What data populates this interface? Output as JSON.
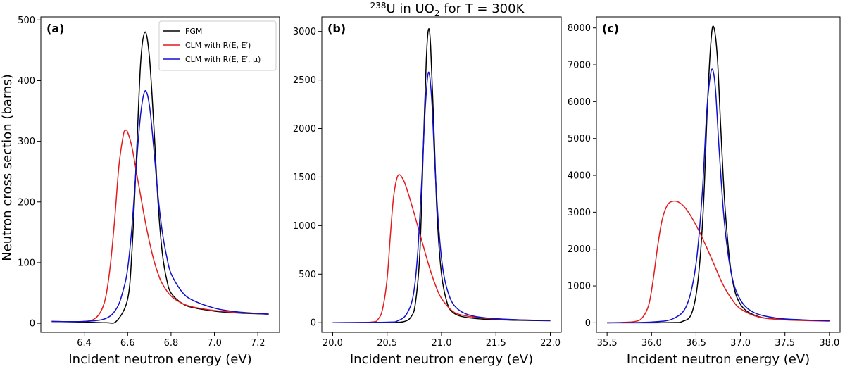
{
  "figure": {
    "title_prefix_sup": "238",
    "title_main": "U in UO",
    "title_sub": "2",
    "title_suffix": " for T = 300K",
    "ylabel": "Neutron cross section (barns)"
  },
  "legend": {
    "entries": [
      {
        "label": "FGM",
        "color": "#000000"
      },
      {
        "label": "CLM with R(E, E′)",
        "color": "#e41a1c"
      },
      {
        "label": "CLM with R(E, E′, μ)",
        "color": "#1010cc"
      }
    ]
  },
  "chart_data": [
    {
      "type": "line",
      "panel_label": "(a)",
      "xlabel": "Incident neutron energy (eV)",
      "ylabel": "Neutron cross section (barns)",
      "xlim": [
        6.2,
        7.3
      ],
      "ylim": [
        -15,
        505
      ],
      "xticks": [
        6.4,
        6.6,
        6.8,
        7.0,
        7.2
      ],
      "xtick_labels": [
        "6.4",
        "6.6",
        "6.8",
        "7.0",
        "7.2"
      ],
      "yticks": [
        0,
        100,
        200,
        300,
        400,
        500
      ],
      "ytick_labels": [
        "0",
        "100",
        "200",
        "300",
        "400",
        "500"
      ],
      "grid": false,
      "legend_position": "top-right",
      "series": [
        {
          "name": "FGM",
          "color": "#000000",
          "x": [
            6.25,
            6.4,
            6.5,
            6.55,
            6.6,
            6.62,
            6.64,
            6.66,
            6.68,
            6.7,
            6.72,
            6.74,
            6.76,
            6.78,
            6.8,
            6.85,
            6.9,
            7.0,
            7.1,
            7.25
          ],
          "y": [
            3,
            2,
            1,
            4,
            40,
            120,
            270,
            430,
            480,
            440,
            330,
            200,
            115,
            72,
            50,
            33,
            26,
            20,
            17,
            15
          ]
        },
        {
          "name": "CLM with R(E, E′)",
          "color": "#e41a1c",
          "x": [
            6.25,
            6.4,
            6.45,
            6.48,
            6.5,
            6.52,
            6.54,
            6.56,
            6.58,
            6.59,
            6.6,
            6.62,
            6.64,
            6.66,
            6.68,
            6.7,
            6.72,
            6.74,
            6.76,
            6.8,
            6.85,
            6.9,
            7.0,
            7.1,
            7.25
          ],
          "y": [
            3,
            3,
            8,
            22,
            45,
            95,
            170,
            260,
            310,
            318,
            315,
            290,
            250,
            210,
            170,
            135,
            105,
            82,
            65,
            45,
            33,
            27,
            21,
            18,
            15
          ]
        },
        {
          "name": "CLM with R(E, E′, μ)",
          "color": "#1010cc",
          "x": [
            6.25,
            6.4,
            6.5,
            6.55,
            6.58,
            6.6,
            6.62,
            6.64,
            6.66,
            6.68,
            6.7,
            6.72,
            6.74,
            6.76,
            6.78,
            6.8,
            6.85,
            6.9,
            7.0,
            7.1,
            7.25
          ],
          "y": [
            3,
            3,
            8,
            25,
            55,
            90,
            160,
            260,
            345,
            383,
            360,
            290,
            210,
            150,
            110,
            82,
            52,
            38,
            25,
            19,
            15
          ]
        }
      ]
    },
    {
      "type": "line",
      "panel_label": "(b)",
      "xlabel": "Incident neutron energy (eV)",
      "xlim": [
        19.9,
        22.1
      ],
      "ylim": [
        -100,
        3150
      ],
      "xticks": [
        20.0,
        20.5,
        21.0,
        21.5,
        22.0
      ],
      "xtick_labels": [
        "20.0",
        "20.5",
        "21.0",
        "21.5",
        "22.0"
      ],
      "yticks": [
        0,
        500,
        1000,
        1500,
        2000,
        2500,
        3000
      ],
      "ytick_labels": [
        "0",
        "500",
        "1000",
        "1500",
        "2000",
        "2500",
        "3000"
      ],
      "grid": false,
      "series": [
        {
          "name": "FGM",
          "color": "#000000",
          "x": [
            20.0,
            20.5,
            20.65,
            20.72,
            20.76,
            20.8,
            20.83,
            20.86,
            20.88,
            20.9,
            20.93,
            20.96,
            21.0,
            21.05,
            21.1,
            21.2,
            21.4,
            21.7,
            22.0
          ],
          "y": [
            0,
            2,
            10,
            60,
            200,
            700,
            1700,
            2700,
            3020,
            2850,
            2000,
            1100,
            500,
            210,
            110,
            60,
            35,
            25,
            20
          ]
        },
        {
          "name": "CLM with R(E, E′)",
          "color": "#e41a1c",
          "x": [
            20.0,
            20.35,
            20.42,
            20.46,
            20.5,
            20.53,
            20.56,
            20.6,
            20.65,
            20.7,
            20.75,
            20.8,
            20.85,
            20.9,
            20.95,
            21.0,
            21.1,
            21.2,
            21.4,
            21.7,
            22.0
          ],
          "y": [
            0,
            5,
            40,
            150,
            450,
            900,
            1300,
            1515,
            1470,
            1310,
            1120,
            920,
            720,
            530,
            370,
            250,
            120,
            75,
            45,
            30,
            22
          ]
        },
        {
          "name": "CLM with R(E, E′, μ)",
          "color": "#1010cc",
          "x": [
            20.0,
            20.5,
            20.6,
            20.68,
            20.74,
            20.78,
            20.82,
            20.85,
            20.88,
            20.91,
            20.94,
            20.98,
            21.02,
            21.08,
            21.15,
            21.25,
            21.4,
            21.7,
            22.0
          ],
          "y": [
            0,
            5,
            20,
            90,
            280,
            700,
            1500,
            2200,
            2580,
            2300,
            1600,
            900,
            500,
            250,
            140,
            80,
            50,
            30,
            22
          ]
        }
      ]
    },
    {
      "type": "line",
      "panel_label": "(c)",
      "xlabel": "Incident neutron energy (eV)",
      "xlim": [
        35.38,
        38.12
      ],
      "ylim": [
        -260,
        8300
      ],
      "xticks": [
        35.5,
        36.0,
        36.5,
        37.0,
        37.5,
        38.0
      ],
      "xtick_labels": [
        "35.5",
        "36.0",
        "36.5",
        "37.0",
        "37.5",
        "38.0"
      ],
      "yticks": [
        0,
        1000,
        2000,
        3000,
        4000,
        5000,
        6000,
        7000,
        8000
      ],
      "ytick_labels": [
        "0",
        "1000",
        "2000",
        "3000",
        "4000",
        "5000",
        "6000",
        "7000",
        "8000"
      ],
      "grid": false,
      "series": [
        {
          "name": "FGM",
          "color": "#000000",
          "x": [
            35.5,
            36.2,
            36.35,
            36.45,
            36.52,
            36.58,
            36.63,
            36.67,
            36.7,
            36.74,
            36.78,
            36.83,
            36.9,
            37.0,
            37.2,
            37.5,
            38.0
          ],
          "y": [
            0,
            5,
            40,
            250,
            1100,
            3000,
            6000,
            7700,
            8020,
            7200,
            5200,
            3000,
            1300,
            500,
            170,
            90,
            55
          ]
        },
        {
          "name": "CLM with R(E, E′)",
          "color": "#e41a1c",
          "x": [
            35.5,
            35.8,
            35.9,
            35.97,
            36.02,
            36.07,
            36.12,
            36.18,
            36.25,
            36.32,
            36.4,
            36.5,
            36.6,
            36.7,
            36.8,
            36.9,
            37.0,
            37.2,
            37.5,
            38.0
          ],
          "y": [
            0,
            30,
            150,
            500,
            1200,
            2100,
            2800,
            3200,
            3300,
            3250,
            3050,
            2650,
            2150,
            1600,
            1050,
            650,
            380,
            160,
            80,
            45
          ]
        },
        {
          "name": "CLM with R(E, E′, μ)",
          "color": "#1010cc",
          "x": [
            35.5,
            36.0,
            36.25,
            36.4,
            36.5,
            36.57,
            36.62,
            36.66,
            36.69,
            36.72,
            36.76,
            36.82,
            36.9,
            37.0,
            37.15,
            37.4,
            37.7,
            38.0
          ],
          "y": [
            0,
            20,
            120,
            500,
            1600,
            3500,
            5700,
            6700,
            6850,
            6300,
            4700,
            2700,
            1300,
            620,
            280,
            130,
            80,
            55
          ]
        }
      ]
    }
  ]
}
